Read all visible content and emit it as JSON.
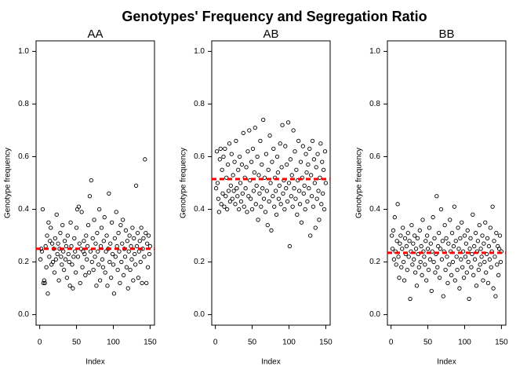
{
  "title": "Genotypes' Frequency and Segregation Ratio",
  "chart_data": [
    {
      "type": "scatter",
      "title": "AA",
      "xlabel": "Index",
      "ylabel": "Genotype frequency",
      "color": "#000000",
      "marker": "open-circle",
      "hline": 0.25,
      "hline_color": "#ff0000",
      "xlim": [
        -4.96,
        155.96
      ],
      "xticks": [
        0,
        50,
        100,
        150
      ],
      "ylim": [
        -0.04,
        1.04
      ],
      "yticks": [
        {
          "value": 0,
          "label": "0.0"
        },
        {
          "value": 0.2,
          "label": "0.2"
        },
        {
          "value": 0.4,
          "label": "0.4"
        },
        {
          "value": 0.6,
          "label": "0.6"
        },
        {
          "value": 0.8,
          "label": "0.8"
        },
        {
          "value": 1,
          "label": "1.0"
        }
      ],
      "x": [
        1,
        2,
        3,
        4,
        5,
        6,
        7,
        8,
        9,
        10,
        11,
        12,
        13,
        14,
        15,
        16,
        17,
        18,
        19,
        20,
        21,
        22,
        23,
        24,
        25,
        26,
        27,
        28,
        29,
        30,
        31,
        32,
        33,
        34,
        35,
        36,
        37,
        38,
        39,
        40,
        41,
        42,
        43,
        44,
        45,
        46,
        47,
        48,
        49,
        50,
        51,
        52,
        53,
        54,
        55,
        56,
        57,
        58,
        59,
        60,
        61,
        62,
        63,
        64,
        65,
        66,
        67,
        68,
        69,
        70,
        71,
        72,
        73,
        74,
        75,
        76,
        77,
        78,
        79,
        80,
        81,
        82,
        83,
        84,
        85,
        86,
        87,
        88,
        89,
        90,
        91,
        92,
        93,
        94,
        95,
        96,
        97,
        98,
        99,
        100,
        101,
        102,
        103,
        104,
        105,
        106,
        107,
        108,
        109,
        110,
        111,
        112,
        113,
        114,
        115,
        116,
        117,
        118,
        119,
        120,
        121,
        122,
        123,
        124,
        125,
        126,
        127,
        128,
        129,
        130,
        131,
        132,
        133,
        134,
        135,
        136,
        137,
        138,
        139,
        140,
        141,
        142,
        143,
        144,
        145,
        146,
        147,
        148,
        149,
        150
      ],
      "values": [
        0.21,
        0.25,
        0.24,
        0.4,
        0.12,
        0.13,
        0.12,
        0.26,
        0.18,
        0.3,
        0.08,
        0.35,
        0.22,
        0.28,
        0.33,
        0.19,
        0.27,
        0.2,
        0.25,
        0.16,
        0.29,
        0.21,
        0.38,
        0.23,
        0.27,
        0.13,
        0.25,
        0.31,
        0.22,
        0.19,
        0.34,
        0.24,
        0.17,
        0.28,
        0.21,
        0.26,
        0.14,
        0.3,
        0.23,
        0.2,
        0.11,
        0.35,
        0.26,
        0.19,
        0.1,
        0.22,
        0.29,
        0.24,
        0.16,
        0.33,
        0.4,
        0.22,
        0.41,
        0.27,
        0.12,
        0.25,
        0.39,
        0.18,
        0.24,
        0.28,
        0.23,
        0.15,
        0.3,
        0.21,
        0.26,
        0.34,
        0.16,
        0.45,
        0.24,
        0.51,
        0.2,
        0.29,
        0.17,
        0.36,
        0.22,
        0.27,
        0.11,
        0.31,
        0.24,
        0.19,
        0.4,
        0.13,
        0.26,
        0.33,
        0.21,
        0.18,
        0.28,
        0.37,
        0.16,
        0.24,
        0.3,
        0.11,
        0.25,
        0.46,
        0.2,
        0.27,
        0.14,
        0.35,
        0.23,
        0.19,
        0.08,
        0.29,
        0.22,
        0.39,
        0.26,
        0.17,
        0.31,
        0.24,
        0.12,
        0.34,
        0.2,
        0.27,
        0.36,
        0.15,
        0.25,
        0.22,
        0.32,
        0.18,
        0.28,
        0.1,
        0.24,
        0.3,
        0.17,
        0.26,
        0.21,
        0.33,
        0.13,
        0.29,
        0.23,
        0.19,
        0.49,
        0.26,
        0.31,
        0.14,
        0.24,
        0.28,
        0.2,
        0.33,
        0.12,
        0.25,
        0.29,
        0.22,
        0.59,
        0.31,
        0.12,
        0.27,
        0.18,
        0.3,
        0.23,
        0.26
      ]
    },
    {
      "type": "scatter",
      "title": "AB",
      "xlabel": "Index",
      "ylabel": "Genotype frequency",
      "color": "#000000",
      "marker": "open-circle",
      "hline": 0.515,
      "hline_color": "#ff0000",
      "xlim": [
        -4.96,
        155.96
      ],
      "xticks": [
        0,
        50,
        100,
        150
      ],
      "ylim": [
        -0.04,
        1.04
      ],
      "yticks": [
        {
          "value": 0,
          "label": "0.0"
        },
        {
          "value": 0.2,
          "label": "0.2"
        },
        {
          "value": 0.4,
          "label": "0.4"
        },
        {
          "value": 0.6,
          "label": "0.6"
        },
        {
          "value": 0.8,
          "label": "0.8"
        },
        {
          "value": 1,
          "label": "1.0"
        }
      ],
      "x": [
        1,
        2,
        3,
        4,
        5,
        6,
        7,
        8,
        9,
        10,
        11,
        12,
        13,
        14,
        15,
        16,
        17,
        18,
        19,
        20,
        21,
        22,
        23,
        24,
        25,
        26,
        27,
        28,
        29,
        30,
        31,
        32,
        33,
        34,
        35,
        36,
        37,
        38,
        39,
        40,
        41,
        42,
        43,
        44,
        45,
        46,
        47,
        48,
        49,
        50,
        51,
        52,
        53,
        54,
        55,
        56,
        57,
        58,
        59,
        60,
        61,
        62,
        63,
        64,
        65,
        66,
        67,
        68,
        69,
        70,
        71,
        72,
        73,
        74,
        75,
        76,
        77,
        78,
        79,
        80,
        81,
        82,
        83,
        84,
        85,
        86,
        87,
        88,
        89,
        90,
        91,
        92,
        93,
        94,
        95,
        96,
        97,
        98,
        99,
        100,
        101,
        102,
        103,
        104,
        105,
        106,
        107,
        108,
        109,
        110,
        111,
        112,
        113,
        114,
        115,
        116,
        117,
        118,
        119,
        120,
        121,
        122,
        123,
        124,
        125,
        126,
        127,
        128,
        129,
        130,
        131,
        132,
        133,
        134,
        135,
        136,
        137,
        138,
        139,
        140,
        141,
        142,
        143,
        144,
        145,
        146,
        147,
        148,
        149,
        150
      ],
      "values": [
        0.48,
        0.62,
        0.5,
        0.44,
        0.39,
        0.59,
        0.63,
        0.42,
        0.55,
        0.46,
        0.6,
        0.41,
        0.63,
        0.45,
        0.52,
        0.4,
        0.57,
        0.47,
        0.65,
        0.43,
        0.49,
        0.61,
        0.44,
        0.53,
        0.47,
        0.58,
        0.42,
        0.66,
        0.48,
        0.45,
        0.55,
        0.4,
        0.6,
        0.5,
        0.43,
        0.57,
        0.46,
        0.69,
        0.41,
        0.52,
        0.48,
        0.56,
        0.39,
        0.62,
        0.45,
        0.7,
        0.51,
        0.44,
        0.58,
        0.4,
        0.63,
        0.47,
        0.54,
        0.71,
        0.42,
        0.49,
        0.6,
        0.36,
        0.53,
        0.46,
        0.66,
        0.41,
        0.57,
        0.48,
        0.74,
        0.44,
        0.52,
        0.39,
        0.61,
        0.47,
        0.34,
        0.55,
        0.43,
        0.68,
        0.5,
        0.32,
        0.58,
        0.45,
        0.63,
        0.41,
        0.52,
        0.47,
        0.38,
        0.6,
        0.54,
        0.44,
        0.49,
        0.65,
        0.42,
        0.56,
        0.72,
        0.46,
        0.51,
        0.4,
        0.64,
        0.48,
        0.57,
        0.43,
        0.73,
        0.5,
        0.26,
        0.59,
        0.45,
        0.53,
        0.41,
        0.7,
        0.48,
        0.62,
        0.44,
        0.55,
        0.38,
        0.51,
        0.66,
        0.47,
        0.42,
        0.58,
        0.35,
        0.52,
        0.64,
        0.46,
        0.49,
        0.4,
        0.61,
        0.54,
        0.43,
        0.57,
        0.48,
        0.63,
        0.3,
        0.53,
        0.45,
        0.66,
        0.41,
        0.59,
        0.5,
        0.33,
        0.56,
        0.44,
        0.61,
        0.47,
        0.36,
        0.52,
        0.65,
        0.42,
        0.58,
        0.46,
        0.55,
        0.4,
        0.62,
        0.5
      ]
    },
    {
      "type": "scatter",
      "title": "BB",
      "xlabel": "Index",
      "ylabel": "Genotype frequency",
      "color": "#000000",
      "marker": "open-circle",
      "hline": 0.235,
      "hline_color": "#ff0000",
      "xlim": [
        -4.96,
        155.96
      ],
      "xticks": [
        0,
        50,
        100,
        150
      ],
      "ylim": [
        -0.04,
        1.04
      ],
      "yticks": [
        {
          "value": 0,
          "label": "0.0"
        },
        {
          "value": 0.2,
          "label": "0.2"
        },
        {
          "value": 0.4,
          "label": "0.4"
        },
        {
          "value": 0.6,
          "label": "0.6"
        },
        {
          "value": 0.8,
          "label": "0.8"
        },
        {
          "value": 1,
          "label": "1.0"
        }
      ],
      "x": [
        1,
        2,
        3,
        4,
        5,
        6,
        7,
        8,
        9,
        10,
        11,
        12,
        13,
        14,
        15,
        16,
        17,
        18,
        19,
        20,
        21,
        22,
        23,
        24,
        25,
        26,
        27,
        28,
        29,
        30,
        31,
        32,
        33,
        34,
        35,
        36,
        37,
        38,
        39,
        40,
        41,
        42,
        43,
        44,
        45,
        46,
        47,
        48,
        49,
        50,
        51,
        52,
        53,
        54,
        55,
        56,
        57,
        58,
        59,
        60,
        61,
        62,
        63,
        64,
        65,
        66,
        67,
        68,
        69,
        70,
        71,
        72,
        73,
        74,
        75,
        76,
        77,
        78,
        79,
        80,
        81,
        82,
        83,
        84,
        85,
        86,
        87,
        88,
        89,
        90,
        91,
        92,
        93,
        94,
        95,
        96,
        97,
        98,
        99,
        100,
        101,
        102,
        103,
        104,
        105,
        106,
        107,
        108,
        109,
        110,
        111,
        112,
        113,
        114,
        115,
        116,
        117,
        118,
        119,
        120,
        121,
        122,
        123,
        124,
        125,
        126,
        127,
        128,
        129,
        130,
        131,
        132,
        133,
        134,
        135,
        136,
        137,
        138,
        139,
        140,
        141,
        142,
        143,
        144,
        145,
        146,
        147,
        148,
        149,
        150
      ],
      "values": [
        0.3,
        0.25,
        0.32,
        0.21,
        0.37,
        0.24,
        0.19,
        0.28,
        0.42,
        0.22,
        0.14,
        0.27,
        0.3,
        0.18,
        0.25,
        0.33,
        0.2,
        0.13,
        0.29,
        0.23,
        0.26,
        0.17,
        0.31,
        0.22,
        0.28,
        0.06,
        0.24,
        0.34,
        0.19,
        0.27,
        0.21,
        0.3,
        0.16,
        0.25,
        0.11,
        0.29,
        0.23,
        0.18,
        0.32,
        0.2,
        0.26,
        0.15,
        0.36,
        0.24,
        0.22,
        0.19,
        0.28,
        0.13,
        0.3,
        0.25,
        0.17,
        0.33,
        0.21,
        0.27,
        0.09,
        0.24,
        0.37,
        0.2,
        0.29,
        0.16,
        0.23,
        0.45,
        0.18,
        0.26,
        0.31,
        0.14,
        0.25,
        0.4,
        0.21,
        0.28,
        0.07,
        0.24,
        0.34,
        0.17,
        0.29,
        0.22,
        0.12,
        0.27,
        0.19,
        0.36,
        0.24,
        0.15,
        0.31,
        0.2,
        0.26,
        0.41,
        0.13,
        0.28,
        0.22,
        0.17,
        0.33,
        0.25,
        0.1,
        0.29,
        0.21,
        0.35,
        0.18,
        0.24,
        0.14,
        0.3,
        0.22,
        0.27,
        0.16,
        0.32,
        0.2,
        0.06,
        0.25,
        0.29,
        0.18,
        0.23,
        0.38,
        0.15,
        0.26,
        0.21,
        0.31,
        0.11,
        0.24,
        0.28,
        0.17,
        0.34,
        0.19,
        0.25,
        0.22,
        0.3,
        0.13,
        0.27,
        0.2,
        0.35,
        0.16,
        0.23,
        0.29,
        0.12,
        0.26,
        0.21,
        0.33,
        0.18,
        0.24,
        0.41,
        0.1,
        0.28,
        0.22,
        0.07,
        0.31,
        0.19,
        0.26,
        0.15,
        0.25,
        0.3,
        0.2,
        0.24
      ]
    }
  ]
}
